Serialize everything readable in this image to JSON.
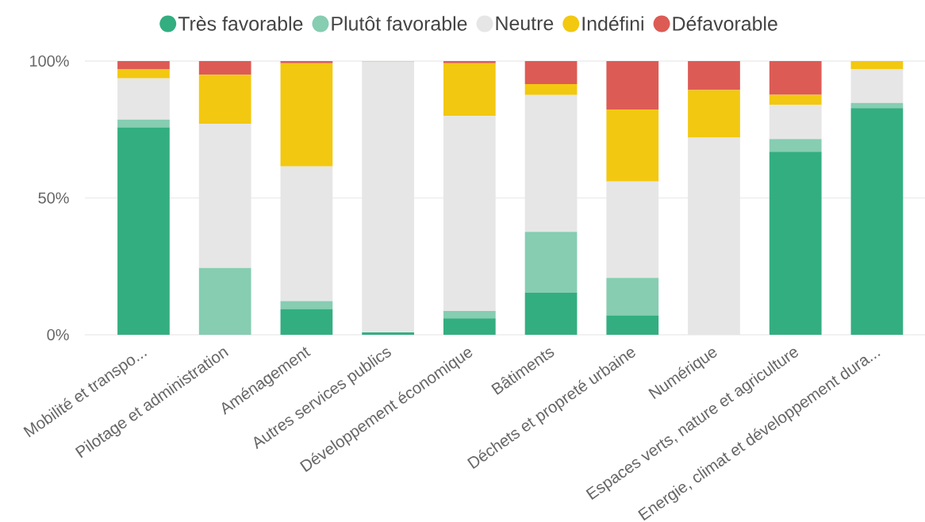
{
  "chart_data": {
    "type": "bar",
    "stacked": true,
    "categories": [
      "Mobilité et transpo...",
      "Pilotage et administration",
      "Aménagement",
      "Autres services publics",
      "Développement économique",
      "Bâtiments",
      "Déchets et propreté urbaine",
      "Numérique",
      "Espaces verts, nature et agriculture",
      "Energie, climat et développement dura..."
    ],
    "series": [
      {
        "name": "Très favorable",
        "color": "#33ae81",
        "values": [
          75.8,
          0,
          9.4,
          0.9,
          6.0,
          15.4,
          7.1,
          0,
          66.9,
          82.8
        ]
      },
      {
        "name": "Plutôt favorable",
        "color": "#86cdb2",
        "values": [
          2.8,
          24.4,
          2.9,
          0,
          2.7,
          22.2,
          13.7,
          0,
          4.6,
          1.9
        ]
      },
      {
        "name": "Neutre",
        "color": "#e6e6e6",
        "values": [
          15.1,
          52.6,
          49.2,
          98.9,
          71.2,
          50.0,
          35.2,
          72.0,
          12.5,
          12.4
        ]
      },
      {
        "name": "Indéfini",
        "color": "#f2c811",
        "values": [
          3.4,
          18.0,
          37.7,
          0.2,
          19.3,
          4.0,
          26.3,
          17.4,
          3.7,
          2.9
        ]
      },
      {
        "name": "Défavorable",
        "color": "#dd5b55",
        "values": [
          2.9,
          5.0,
          0.8,
          0,
          0.8,
          8.4,
          17.7,
          10.6,
          12.3,
          0
        ]
      }
    ],
    "ylim": [
      0,
      100
    ],
    "yticks": [
      {
        "value": 0,
        "label": "0%"
      },
      {
        "value": 50,
        "label": "50%"
      },
      {
        "value": 100,
        "label": "100%"
      }
    ],
    "grid": "y",
    "legend": "top",
    "marker": "circle"
  }
}
